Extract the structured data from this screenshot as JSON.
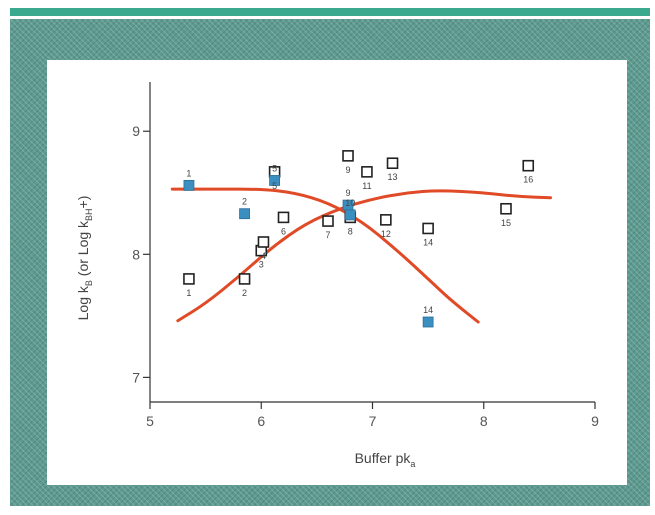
{
  "chart_data": {
    "type": "scatter",
    "title": "",
    "xlabel": "Buffer pk",
    "xlabel_sub": "a",
    "ylabel": "Log k",
    "ylabel_sub": "B",
    "ylabel_rest": " (or Log k",
    "ylabel_sub2": "BH",
    "ylabel_end": "+)",
    "xlim": [
      5,
      9
    ],
    "ylim": [
      6.8,
      9.4
    ],
    "xticks": [
      5,
      6,
      7,
      8,
      9
    ],
    "yticks": [
      7,
      8,
      9
    ],
    "grid": false,
    "open_squares": [
      {
        "x": 5.35,
        "y": 7.8,
        "label": "1"
      },
      {
        "x": 5.85,
        "y": 7.8,
        "label": "2"
      },
      {
        "x": 6.0,
        "y": 8.03,
        "label": "3"
      },
      {
        "x": 6.02,
        "y": 8.1,
        "label": "4"
      },
      {
        "x": 6.12,
        "y": 8.67,
        "label": "5"
      },
      {
        "x": 6.2,
        "y": 8.3,
        "label": "6"
      },
      {
        "x": 6.6,
        "y": 8.27,
        "label": "7"
      },
      {
        "x": 6.8,
        "y": 8.3,
        "label": "8"
      },
      {
        "x": 6.78,
        "y": 8.8,
        "label": "9"
      },
      {
        "x": 6.95,
        "y": 8.67,
        "label": "11"
      },
      {
        "x": 7.12,
        "y": 8.28,
        "label": "12"
      },
      {
        "x": 7.18,
        "y": 8.74,
        "label": "13"
      },
      {
        "x": 7.5,
        "y": 8.21,
        "label": "14"
      },
      {
        "x": 8.2,
        "y": 8.37,
        "label": "15"
      },
      {
        "x": 8.4,
        "y": 8.72,
        "label": "16"
      }
    ],
    "filled_squares": [
      {
        "x": 5.35,
        "y": 8.56,
        "label": "1"
      },
      {
        "x": 5.85,
        "y": 8.33,
        "label": "2"
      },
      {
        "x": 6.12,
        "y": 8.6,
        "label": "5"
      },
      {
        "x": 6.78,
        "y": 8.4,
        "label": "9"
      },
      {
        "x": 6.8,
        "y": 8.32,
        "label": "10"
      },
      {
        "x": 7.5,
        "y": 7.45,
        "label": "14"
      }
    ],
    "curves": [
      {
        "points": [
          [
            5.2,
            8.53
          ],
          [
            5.6,
            8.53
          ],
          [
            6.0,
            8.53
          ],
          [
            6.3,
            8.5
          ],
          [
            6.6,
            8.42
          ],
          [
            6.9,
            8.27
          ],
          [
            7.2,
            8.05
          ],
          [
            7.5,
            7.8
          ],
          [
            7.7,
            7.63
          ],
          [
            7.95,
            7.45
          ]
        ]
      },
      {
        "points": [
          [
            5.25,
            7.46
          ],
          [
            5.5,
            7.6
          ],
          [
            5.8,
            7.82
          ],
          [
            6.1,
            8.06
          ],
          [
            6.4,
            8.25
          ],
          [
            6.7,
            8.37
          ],
          [
            7.0,
            8.45
          ],
          [
            7.3,
            8.5
          ],
          [
            7.6,
            8.52
          ],
          [
            8.0,
            8.5
          ],
          [
            8.3,
            8.47
          ],
          [
            8.6,
            8.46
          ]
        ]
      }
    ],
    "colors": {
      "curve": "#e04a26",
      "filled": "#3b8ec0",
      "open": "#222222",
      "axis": "#333333"
    }
  }
}
